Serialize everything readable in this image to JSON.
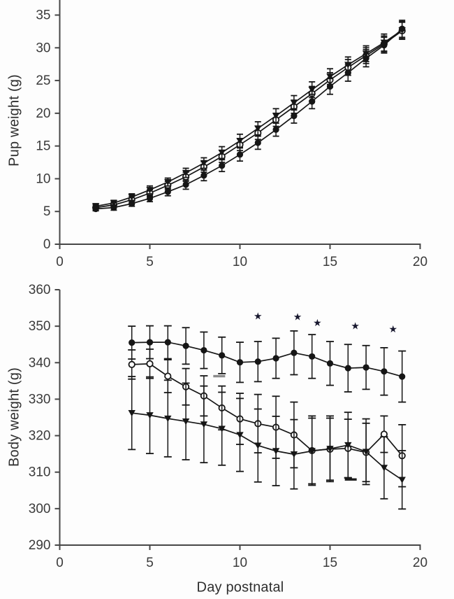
{
  "page": {
    "background": "#fdfdfd"
  },
  "chart_data": [
    {
      "type": "line",
      "title": "",
      "xlabel": "",
      "ylabel": "Pup weight (g)",
      "x": [
        2,
        3,
        4,
        5,
        6,
        7,
        8,
        9,
        10,
        11,
        12,
        13,
        14,
        15,
        16,
        17,
        18,
        19
      ],
      "xlim": [
        0,
        20
      ],
      "ylim": [
        0,
        37.3
      ],
      "xticks": [
        0,
        5,
        10,
        15,
        20
      ],
      "yticks": [
        0,
        5,
        10,
        15,
        20,
        25,
        30,
        35
      ],
      "grid": false,
      "legend": "none",
      "series": [
        {
          "name": "open-circle",
          "marker": "circle-open",
          "values": [
            5.6,
            6.0,
            6.8,
            7.8,
            9.0,
            10.3,
            11.8,
            13.4,
            15.2,
            17.0,
            19.0,
            21.0,
            23.0,
            25.1,
            27.0,
            28.8,
            30.6,
            32.6
          ],
          "err": [
            0.4,
            0.4,
            0.5,
            0.5,
            0.6,
            0.7,
            0.8,
            0.9,
            0.9,
            1.0,
            1.0,
            1.0,
            1.1,
            1.1,
            1.2,
            1.2,
            1.2,
            1.3
          ]
        },
        {
          "name": "filled-triangle",
          "marker": "triangle-down-filled",
          "values": [
            5.8,
            6.3,
            7.2,
            8.3,
            9.5,
            10.9,
            12.4,
            14.0,
            15.8,
            17.7,
            19.6,
            21.6,
            23.6,
            25.6,
            27.4,
            29.1,
            30.8,
            32.7
          ],
          "err": [
            0.4,
            0.4,
            0.5,
            0.6,
            0.6,
            0.7,
            0.8,
            0.9,
            1.0,
            1.0,
            1.1,
            1.1,
            1.2,
            1.2,
            1.2,
            1.2,
            1.3,
            1.3
          ]
        },
        {
          "name": "filled-circle",
          "marker": "circle-filled",
          "values": [
            5.4,
            5.6,
            6.2,
            7.0,
            8.0,
            9.1,
            10.5,
            12.0,
            13.7,
            15.5,
            17.5,
            19.6,
            21.8,
            24.1,
            26.2,
            28.4,
            30.4,
            32.9
          ],
          "err": [
            0.3,
            0.4,
            0.4,
            0.5,
            0.6,
            0.7,
            0.8,
            0.9,
            1.0,
            1.0,
            1.0,
            1.1,
            1.1,
            1.2,
            1.3,
            1.3,
            1.2,
            1.3
          ]
        }
      ]
    },
    {
      "type": "line",
      "title": "",
      "xlabel": "Day postnatal",
      "ylabel": "Body weight (g)",
      "x": [
        4,
        5,
        6,
        7,
        8,
        9,
        10,
        11,
        12,
        13,
        14,
        15,
        16,
        17,
        18,
        19
      ],
      "xlim": [
        0,
        20
      ],
      "ylim": [
        290,
        360
      ],
      "xticks": [
        0,
        5,
        10,
        15,
        20
      ],
      "yticks": [
        290,
        300,
        310,
        320,
        330,
        340,
        350,
        360
      ],
      "grid": false,
      "legend": "none",
      "series": [
        {
          "name": "open-circle",
          "marker": "circle-open",
          "values": [
            339.5,
            339.7,
            336.3,
            333.4,
            330.9,
            327.6,
            324.6,
            323.3,
            322.3,
            320.2,
            315.9,
            316.3,
            316.5,
            315.4,
            320.4,
            314.5
          ],
          "err": [
            4.0,
            4.0,
            4.5,
            5.0,
            5.5,
            6.0,
            7.0,
            8.0,
            8.5,
            9.0,
            9.5,
            8.5,
            8.0,
            8.0,
            5.0,
            8.5
          ]
        },
        {
          "name": "filled-triangle",
          "marker": "triangle-down-filled",
          "values": [
            326.2,
            325.6,
            324.7,
            323.9,
            323.1,
            321.9,
            320.2,
            317.3,
            315.8,
            314.9,
            315.8,
            316.4,
            317.4,
            315.6,
            311.2,
            307.9
          ],
          "err": [
            10.0,
            10.5,
            10.5,
            10.5,
            10.5,
            10.0,
            10.0,
            10.0,
            9.5,
            9.5,
            9.0,
            9.0,
            9.0,
            9.0,
            8.5,
            8.0
          ]
        },
        {
          "name": "filled-circle",
          "marker": "circle-filled",
          "values": [
            345.5,
            345.6,
            345.6,
            344.6,
            343.4,
            342.0,
            340.1,
            340.3,
            341.2,
            342.7,
            341.7,
            339.8,
            338.5,
            338.7,
            337.6,
            336.2
          ],
          "err": [
            4.5,
            4.5,
            4.5,
            5.0,
            5.0,
            5.0,
            5.5,
            5.5,
            5.5,
            6.0,
            6.0,
            6.0,
            6.5,
            6.0,
            6.5,
            7.0
          ]
        }
      ],
      "significance_marks": {
        "glyph": "★",
        "color": "#17172e",
        "positions": [
          {
            "day": 11.0,
            "value": 352.8
          },
          {
            "day": 13.2,
            "value": 352.6
          },
          {
            "day": 14.3,
            "value": 351.0
          },
          {
            "day": 16.4,
            "value": 350.1
          },
          {
            "day": 18.5,
            "value": 349.3
          }
        ]
      },
      "dash_marks": [
        {
          "day": 8.85,
          "value": 336.3,
          "color": "#8b8b8b"
        },
        {
          "day": 16.15,
          "value": 308.0,
          "color": "#1c1c1c"
        }
      ]
    }
  ]
}
